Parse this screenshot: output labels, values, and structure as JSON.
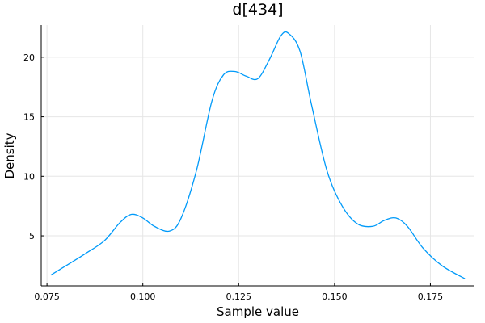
{
  "chart_data": {
    "type": "line",
    "title": "d[434]",
    "xlabel": "Sample value",
    "ylabel": "Density",
    "xlim": [
      0.0735,
      0.1865
    ],
    "ylim": [
      0.8,
      22.7
    ],
    "grid": true,
    "x_ticks": [
      0.075,
      0.1,
      0.125,
      0.15,
      0.175
    ],
    "x_tick_labels": [
      "0.075",
      "0.100",
      "0.125",
      "0.150",
      "0.175"
    ],
    "y_ticks": [
      5,
      10,
      15,
      20
    ],
    "y_tick_labels": [
      "5",
      "10",
      "15",
      "20"
    ],
    "series": [
      {
        "color": "#009af9",
        "x": [
          0.076,
          0.08,
          0.085,
          0.09,
          0.094,
          0.097,
          0.1,
          0.103,
          0.107,
          0.11,
          0.114,
          0.118,
          0.121,
          0.124,
          0.127,
          0.13,
          0.133,
          0.136,
          0.138,
          0.141,
          0.144,
          0.148,
          0.152,
          0.156,
          0.16,
          0.163,
          0.166,
          0.169,
          0.173,
          0.178,
          0.184
        ],
        "y": [
          1.7,
          2.5,
          3.5,
          4.6,
          6.1,
          6.8,
          6.5,
          5.8,
          5.4,
          6.5,
          10.5,
          16.3,
          18.5,
          18.8,
          18.4,
          18.2,
          19.8,
          21.8,
          22.0,
          20.5,
          16.0,
          10.5,
          7.5,
          6.0,
          5.8,
          6.3,
          6.5,
          5.8,
          4.0,
          2.5,
          1.4
        ]
      }
    ]
  }
}
